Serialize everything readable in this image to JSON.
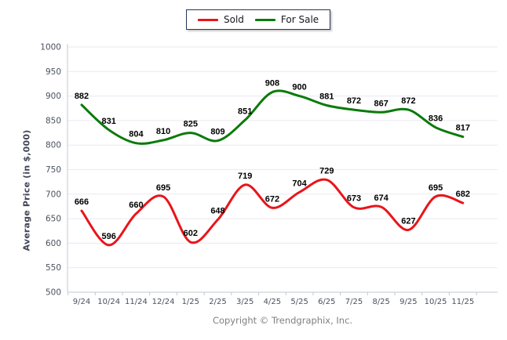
{
  "legend": {
    "items": [
      {
        "label": "Sold",
        "color": "#e8151a"
      },
      {
        "label": "For Sale",
        "color": "#0b7a0b"
      }
    ]
  },
  "chart_data": {
    "type": "line",
    "categories": [
      "9/24",
      "10/24",
      "11/24",
      "12/24",
      "1/25",
      "2/25",
      "3/25",
      "4/25",
      "5/25",
      "6/25",
      "7/25",
      "8/25",
      "9/25",
      "10/25",
      "11/25"
    ],
    "series": [
      {
        "name": "Sold",
        "color": "#e8151a",
        "values": [
          666,
          596,
          660,
          695,
          602,
          648,
          719,
          672,
          704,
          729,
          673,
          674,
          627,
          695,
          682
        ]
      },
      {
        "name": "For Sale",
        "color": "#0b7a0b",
        "values": [
          882,
          831,
          804,
          810,
          825,
          809,
          851,
          908,
          900,
          881,
          872,
          867,
          872,
          836,
          817
        ]
      }
    ],
    "title": "",
    "xlabel": "",
    "ylabel": "Average Price (in $,000)",
    "ylim": [
      500,
      1000
    ],
    "yticks": [
      500,
      550,
      600,
      650,
      700,
      750,
      800,
      850,
      900,
      950,
      1000
    ],
    "grid": true,
    "smooth": true,
    "data_labels": true,
    "legend_position": "top-center"
  },
  "footer": {
    "copyright": "Copyright © Trendgraphix, Inc."
  },
  "colors": {
    "grid": "#eaeaf1",
    "axis": "#c3c8d2",
    "tick_label": "#49505e",
    "data_label": "#000000",
    "legend_border": "#26355b",
    "copyright": "#808080",
    "background": "#ffffff"
  }
}
